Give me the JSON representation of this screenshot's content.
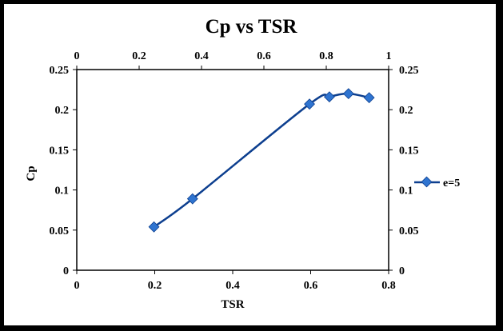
{
  "chart_data": {
    "type": "line",
    "title": "Cp vs TSR",
    "xlabel": "TSR",
    "ylabel": "Cp",
    "xlim": [
      0,
      0.8
    ],
    "ylim": [
      0,
      0.25
    ],
    "x_ticks": [
      "0",
      "0.2",
      "0.4",
      "0.6",
      "0.8"
    ],
    "x2lim": [
      0,
      1
    ],
    "x2_ticks": [
      "0",
      "0.2",
      "0.4",
      "0.6",
      "0.8",
      "1"
    ],
    "y_ticks": [
      "0",
      "0.05",
      "0.1",
      "0.15",
      "0.2",
      "0.25"
    ],
    "y2_ticks": [
      "0",
      "0.05",
      "0.1",
      "0.15",
      "0.2",
      "0.25"
    ],
    "grid": false,
    "legend_position": "right",
    "series": [
      {
        "name": "e=5",
        "color": "#0d3f8f",
        "marker_color": "#2f74d0",
        "x": [
          0.198,
          0.297,
          0.597,
          0.648,
          0.697,
          0.75
        ],
        "y": [
          0.054,
          0.089,
          0.207,
          0.216,
          0.22,
          0.215
        ]
      }
    ]
  }
}
